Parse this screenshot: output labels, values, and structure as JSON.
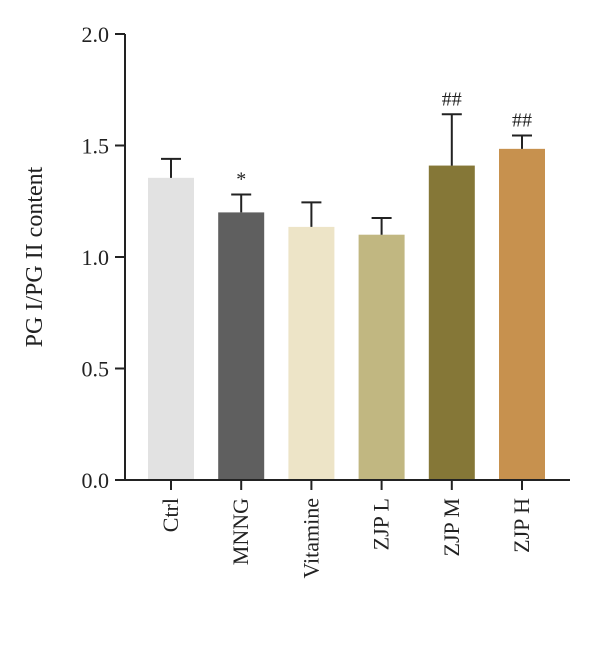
{
  "chart_data": {
    "type": "bar",
    "title": "",
    "xlabel": "",
    "ylabel": "PG I/PG II content",
    "ylim": [
      0.0,
      2.0
    ],
    "yticks": [
      "0.0",
      "0.5",
      "1.0",
      "1.5",
      "2.0"
    ],
    "grid": false,
    "categories": [
      "Ctrl",
      "MNNG",
      "Vitamine",
      "ZJP L",
      "ZJP M",
      "ZJP H"
    ],
    "values": [
      1.355,
      1.2,
      1.135,
      1.1,
      1.41,
      1.485
    ],
    "error_upper": [
      1.44,
      1.28,
      1.245,
      1.175,
      1.64,
      1.545
    ],
    "colors": [
      "#e2e2e2",
      "#5f5f5f",
      "#ede4c7",
      "#c1b781",
      "#857737",
      "#c7914e"
    ],
    "significance": [
      "",
      "*",
      "",
      "",
      "##",
      "##"
    ]
  }
}
